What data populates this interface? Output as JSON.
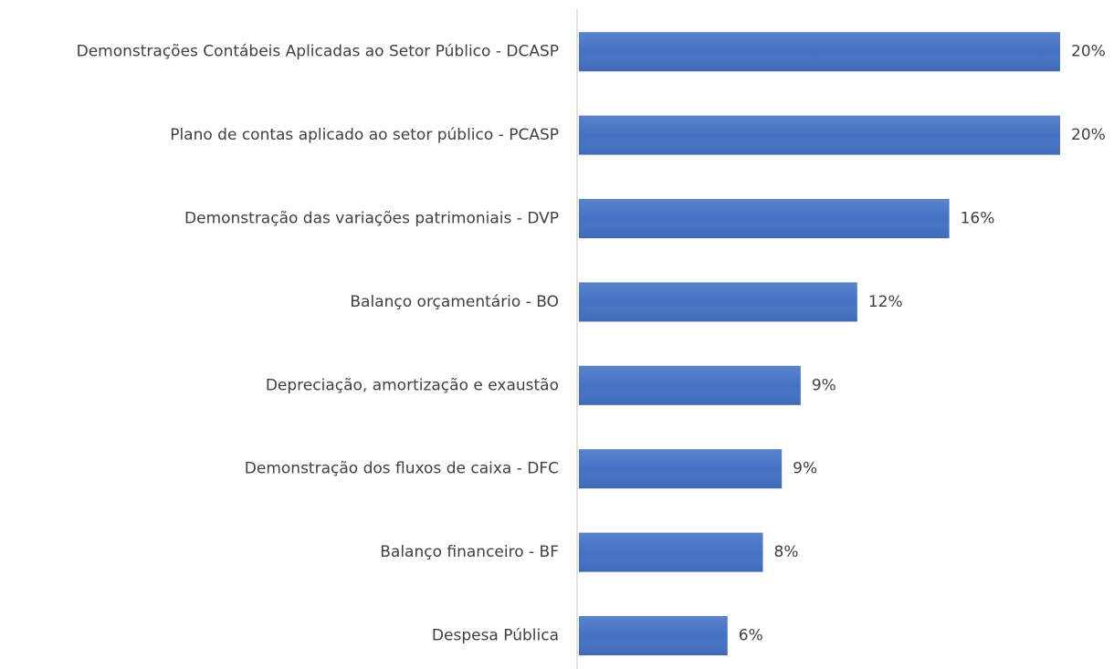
{
  "chart_data": {
    "type": "barh",
    "categories": [
      "Demonstrações Contábeis Aplicadas ao Setor Público - DCASP",
      "Plano de contas aplicado ao setor público - PCASP",
      "Demonstração das variações patrimoniais - DVP",
      "Balanço orçamentário - BO",
      "Depreciação, amortização e exaustão",
      "Demonstração dos fluxos de caixa - DFC",
      "Balanço financeiro - BF",
      "Despesa Pública"
    ],
    "values": [
      20.4,
      20.4,
      15.7,
      11.8,
      9.4,
      8.6,
      7.8,
      6.3
    ],
    "value_labels": [
      "20%",
      "20%",
      "16%",
      "12%",
      "9%",
      "9%",
      "8%",
      "6%"
    ],
    "color": "#4472c4",
    "xlim": [
      0,
      20.4
    ]
  }
}
